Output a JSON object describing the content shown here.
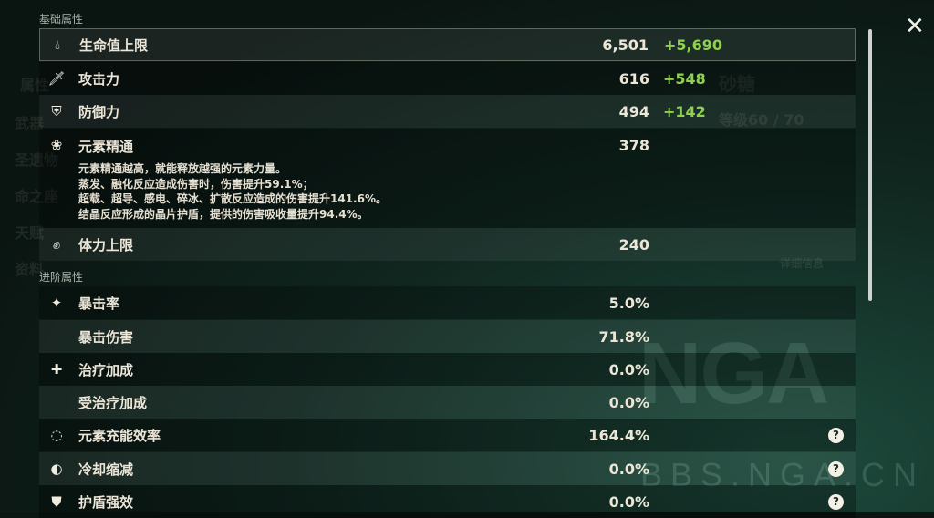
{
  "background": {
    "sidebar": [
      "属性",
      "武器",
      "圣遗物",
      "命之座",
      "天赋",
      "资料"
    ],
    "char_name": "砂糖",
    "level": "等级60 / 70",
    "details_link": "详细信息"
  },
  "sections": {
    "basic": "基础属性",
    "advanced": "进阶属性"
  },
  "basic_stats": [
    {
      "icon": "hp-drop-icon",
      "label": "生命值上限",
      "value": "6,501",
      "bonus": "+5,690"
    },
    {
      "icon": "sword-icon",
      "label": "攻击力",
      "value": "616",
      "bonus": "+548"
    },
    {
      "icon": "shield-icon",
      "label": "防御力",
      "value": "494",
      "bonus": "+142"
    },
    {
      "icon": "elemental-mastery-icon",
      "label": "元素精通",
      "value": "378",
      "bonus": ""
    },
    {
      "icon": "stamina-icon",
      "label": "体力上限",
      "value": "240",
      "bonus": ""
    }
  ],
  "em_description": [
    "元素精通越高，就能释放越强的元素力量。",
    "蒸发、融化反应造成伤害时，伤害提升59.1%；",
    "超载、超导、感电、碎冰、扩散反应造成的伤害提升141.6%。",
    "结晶反应形成的晶片护盾，提供的伤害吸收量提升94.4%。"
  ],
  "advanced_stats": [
    {
      "icon": "crit-icon",
      "label": "暴击率",
      "value": "5.0%"
    },
    {
      "icon": "",
      "label": "暴击伤害",
      "value": "71.8%"
    },
    {
      "icon": "healing-cross-icon",
      "label": "治疗加成",
      "value": "0.0%"
    },
    {
      "icon": "",
      "label": "受治疗加成",
      "value": "0.0%"
    },
    {
      "icon": "energy-recharge-icon",
      "label": "元素充能效率",
      "value": "164.4%",
      "help": "?"
    },
    {
      "icon": "cooldown-icon",
      "label": "冷却缩减",
      "value": "0.0%",
      "help": "?"
    },
    {
      "icon": "shield-strength-icon",
      "label": "护盾强效",
      "value": "0.0%",
      "help": "?"
    }
  ],
  "close": "✕",
  "watermark": {
    "logo": "NGA",
    "url": "BBS.NGA.CN"
  },
  "colors": {
    "bonus": "#8fd14f",
    "text": "#ece6d8"
  }
}
